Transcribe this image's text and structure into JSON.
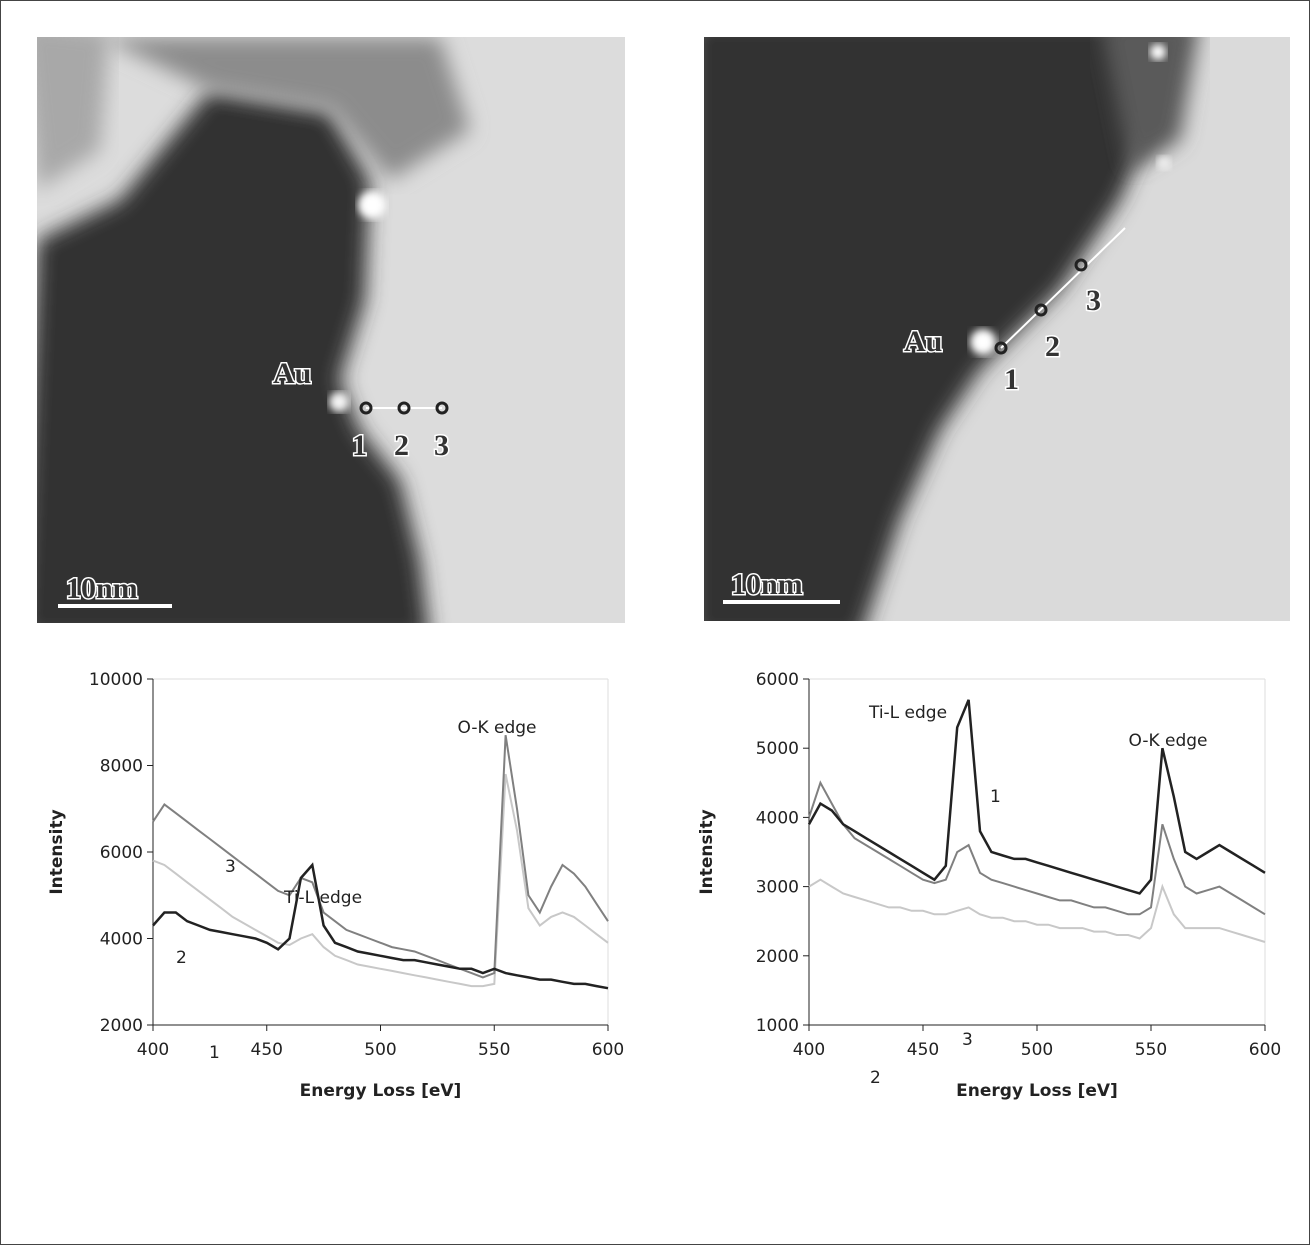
{
  "images": [
    {
      "labels": [
        "Au",
        "1",
        "2",
        "3"
      ],
      "scale_bar": "10nm"
    },
    {
      "labels": [
        "Au",
        "1",
        "2",
        "3"
      ],
      "scale_bar": "10nm"
    }
  ],
  "chart_data": [
    {
      "type": "line",
      "x_label": "Energy Loss [eV]",
      "y_label": "Intensity",
      "annotations": [
        "Ti-L edge",
        "O-K edge"
      ],
      "xlim": [
        400,
        600
      ],
      "xticks": [
        400,
        450,
        500,
        550,
        600
      ],
      "ylim": [
        2000,
        10000
      ],
      "yticks": [
        2000,
        4000,
        6000,
        8000,
        10000
      ],
      "x": [
        400,
        405,
        410,
        415,
        420,
        425,
        430,
        435,
        440,
        445,
        450,
        455,
        460,
        465,
        470,
        475,
        480,
        485,
        490,
        495,
        500,
        505,
        510,
        515,
        520,
        525,
        530,
        535,
        540,
        545,
        550,
        555,
        560,
        565,
        570,
        575,
        580,
        585,
        590,
        595,
        600
      ],
      "series": [
        {
          "name": "1",
          "color": "#222222",
          "values": [
            4300,
            4600,
            4600,
            4400,
            4300,
            4200,
            4150,
            4100,
            4050,
            4000,
            3900,
            3750,
            4000,
            5400,
            5700,
            4300,
            3900,
            3800,
            3700,
            3650,
            3600,
            3550,
            3500,
            3500,
            3450,
            3400,
            3350,
            3300,
            3300,
            3200,
            3300,
            3200,
            3150,
            3100,
            3050,
            3050,
            3000,
            2950,
            2950,
            2900,
            2850
          ]
        },
        {
          "name": "2",
          "color": "#c8c8c8",
          "values": [
            5800,
            5700,
            5500,
            5300,
            5100,
            4900,
            4700,
            4500,
            4350,
            4200,
            4050,
            3900,
            3850,
            4000,
            4100,
            3800,
            3600,
            3500,
            3400,
            3350,
            3300,
            3250,
            3200,
            3150,
            3100,
            3050,
            3000,
            2950,
            2900,
            2900,
            2950,
            7800,
            6500,
            4700,
            4300,
            4500,
            4600,
            4500,
            4300,
            4100,
            3900
          ]
        },
        {
          "name": "3",
          "color": "#808080",
          "values": [
            6700,
            7100,
            6900,
            6700,
            6500,
            6300,
            6100,
            5900,
            5700,
            5500,
            5300,
            5100,
            5000,
            5400,
            5300,
            4600,
            4400,
            4200,
            4100,
            4000,
            3900,
            3800,
            3750,
            3700,
            3600,
            3500,
            3400,
            3300,
            3200,
            3100,
            3200,
            8700,
            7000,
            5000,
            4600,
            5200,
            5700,
            5500,
            5200,
            4800,
            4400
          ]
        }
      ]
    },
    {
      "type": "line",
      "x_label": "Energy Loss [eV]",
      "y_label": "Intensity",
      "annotations": [
        "Ti-L edge",
        "O-K edge"
      ],
      "xlim": [
        400,
        600
      ],
      "xticks": [
        400,
        450,
        500,
        550,
        600
      ],
      "ylim": [
        1000,
        6000
      ],
      "yticks": [
        1000,
        2000,
        3000,
        4000,
        5000,
        6000
      ],
      "x": [
        400,
        405,
        410,
        415,
        420,
        425,
        430,
        435,
        440,
        445,
        450,
        455,
        460,
        465,
        470,
        475,
        480,
        485,
        490,
        495,
        500,
        505,
        510,
        515,
        520,
        525,
        530,
        535,
        540,
        545,
        550,
        555,
        560,
        565,
        570,
        575,
        580,
        585,
        590,
        595,
        600
      ],
      "series": [
        {
          "name": "1",
          "color": "#222222",
          "values": [
            3900,
            4200,
            4100,
            3900,
            3800,
            3700,
            3600,
            3500,
            3400,
            3300,
            3200,
            3100,
            3300,
            5300,
            5700,
            3800,
            3500,
            3450,
            3400,
            3400,
            3350,
            3300,
            3250,
            3200,
            3150,
            3100,
            3050,
            3000,
            2950,
            2900,
            3100,
            5000,
            4300,
            3500,
            3400,
            3500,
            3600,
            3500,
            3400,
            3300,
            3200
          ]
        },
        {
          "name": "2",
          "color": "#c8c8c8",
          "values": [
            3000,
            3100,
            3000,
            2900,
            2850,
            2800,
            2750,
            2700,
            2700,
            2650,
            2650,
            2600,
            2600,
            2650,
            2700,
            2600,
            2550,
            2550,
            2500,
            2500,
            2450,
            2450,
            2400,
            2400,
            2400,
            2350,
            2350,
            2300,
            2300,
            2250,
            2400,
            3000,
            2600,
            2400,
            2400,
            2400,
            2400,
            2350,
            2300,
            2250,
            2200
          ]
        },
        {
          "name": "3",
          "color": "#808080",
          "values": [
            4000,
            4500,
            4200,
            3900,
            3700,
            3600,
            3500,
            3400,
            3300,
            3200,
            3100,
            3050,
            3100,
            3500,
            3600,
            3200,
            3100,
            3050,
            3000,
            2950,
            2900,
            2850,
            2800,
            2800,
            2750,
            2700,
            2700,
            2650,
            2600,
            2600,
            2700,
            3900,
            3400,
            3000,
            2900,
            2950,
            3000,
            2900,
            2800,
            2700,
            2600
          ]
        }
      ]
    }
  ]
}
